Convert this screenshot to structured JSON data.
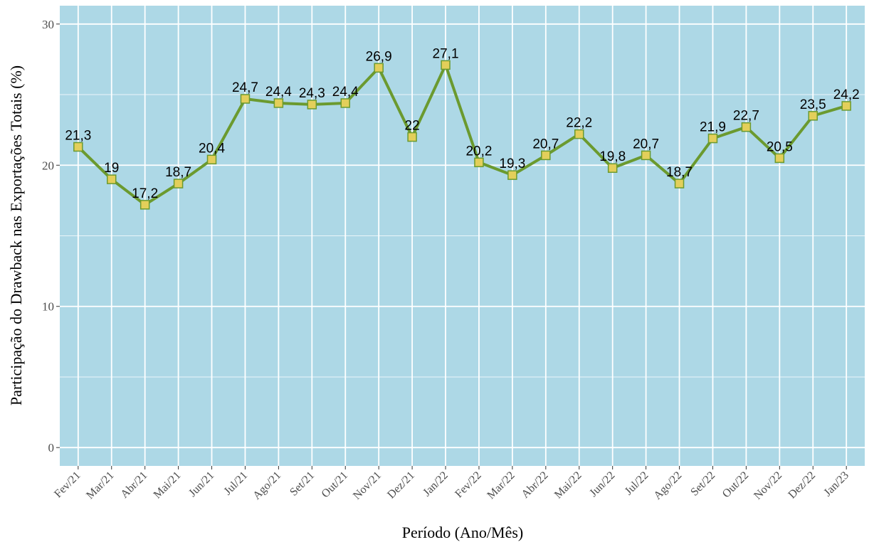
{
  "chart_data": {
    "type": "line",
    "x_label": "Período (Ano/Mês)",
    "y_label": "Participação do Drawback nas Exportações Totais (%)",
    "categories": [
      "Fev/21",
      "Mar/21",
      "Abr/21",
      "Mai/21",
      "Jun/21",
      "Jul/21",
      "Ago/21",
      "Set/21",
      "Out/21",
      "Nov/21",
      "Dez/21",
      "Jan/22",
      "Fev/22",
      "Mar/22",
      "Abr/22",
      "Mai/22",
      "Jun/22",
      "Jul/22",
      "Ago/22",
      "Set/22",
      "Out/22",
      "Nov/22",
      "Dez/22",
      "Jan/23"
    ],
    "values": [
      21.3,
      19,
      17.2,
      18.7,
      20.4,
      24.7,
      24.4,
      24.3,
      24.4,
      26.9,
      22,
      27.1,
      20.2,
      19.3,
      20.7,
      22.2,
      19.8,
      20.7,
      18.7,
      21.9,
      22.7,
      20.5,
      23.5,
      24.2
    ],
    "value_labels": [
      "21,3",
      "19",
      "17,2",
      "18,7",
      "20,4",
      "24,7",
      "24,4",
      "24,3",
      "24,4",
      "26,9",
      "22",
      "27,1",
      "20,2",
      "19,3",
      "20,7",
      "22,2",
      "19,8",
      "20,7",
      "18,7",
      "21,9",
      "22,7",
      "20,5",
      "23,5",
      "24,2"
    ],
    "color": "#6b9a2f",
    "marker_fill": "#e3cf5a",
    "background": "#add8e6",
    "ylim": [
      -1.3,
      31.3
    ],
    "yticks": [
      0,
      10,
      20,
      30
    ],
    "y_minor_grid": [
      5,
      15,
      25
    ],
    "grid": true
  }
}
